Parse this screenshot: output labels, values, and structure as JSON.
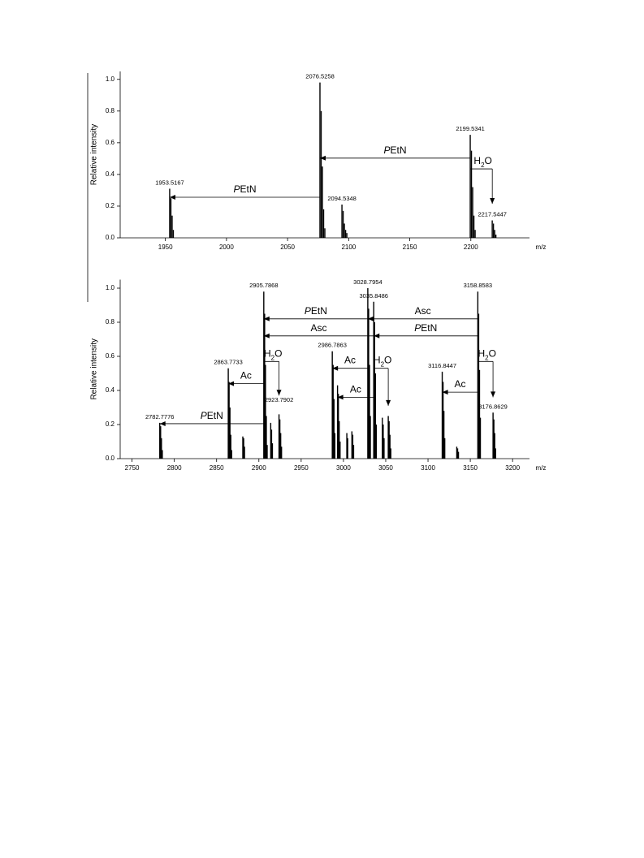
{
  "chart_data": [
    {
      "type": "stem",
      "y_label": "Relative intensity",
      "x_label": "m/z",
      "xlim": [
        1913,
        2248
      ],
      "ylim": [
        0,
        1.05
      ],
      "xticks": [
        1950,
        2000,
        2050,
        2100,
        2150,
        2200
      ],
      "yticks": [
        {
          "value": 0,
          "label": "0.0"
        },
        {
          "value": 0.2,
          "label": "0.2"
        },
        {
          "value": 0.4,
          "label": "0.4"
        },
        {
          "value": 0.6,
          "label": "0.6"
        },
        {
          "value": 0.8,
          "label": "0.8"
        },
        {
          "value": 1,
          "label": "1.0"
        }
      ],
      "color": "#000000",
      "x": [
        1953.5,
        1954.5,
        1955.5,
        1956.5,
        2076.5,
        2077.5,
        2078.5,
        2079.5,
        2080.5,
        2094.5,
        2095.5,
        2096.5,
        2097.5,
        2098.5,
        2199.5,
        2200.5,
        2201.5,
        2202.5,
        2203.5,
        2217.5,
        2218.5,
        2219.5,
        2220.5
      ],
      "values": [
        0.31,
        0.25,
        0.14,
        0.05,
        0.98,
        0.8,
        0.45,
        0.18,
        0.06,
        0.21,
        0.17,
        0.09,
        0.05,
        0.03,
        0.65,
        0.55,
        0.32,
        0.14,
        0.05,
        0.11,
        0.09,
        0.05,
        0.02
      ],
      "peak_labels": [
        {
          "x": 1953.5167,
          "y": 0.31
        },
        {
          "x": 2076.5258,
          "y": 0.98
        },
        {
          "x": 2094.5348,
          "y": 0.21
        },
        {
          "x": 2199.5341,
          "y": 0.65
        },
        {
          "x": 2217.5447,
          "y": 0.11
        }
      ],
      "arrows": [
        {
          "label": "PEtN",
          "from": 2199.5341,
          "to": 2076.5258,
          "y": 0.503
        },
        {
          "label": "PEtN",
          "from": 2076.5258,
          "to": 1953.5167,
          "y": 0.256
        },
        {
          "label": "H2O",
          "from": 2199.5341,
          "to": 2217.5447,
          "y": 0.435,
          "y_end": 0.215
        }
      ]
    },
    {
      "type": "stem",
      "y_label": "Relative intensity",
      "x_label": "m/z",
      "xlim": [
        2736,
        3220
      ],
      "ylim": [
        0,
        1.05
      ],
      "xticks": [
        2750,
        2800,
        2850,
        2900,
        2950,
        3000,
        3050,
        3100,
        3150,
        3200
      ],
      "yticks": [
        {
          "value": 0,
          "label": "0.0"
        },
        {
          "value": 0.2,
          "label": "0.2"
        },
        {
          "value": 0.4,
          "label": "0.4"
        },
        {
          "value": 0.6,
          "label": "0.6"
        },
        {
          "value": 0.8,
          "label": "0.8"
        },
        {
          "value": 1,
          "label": "1.0"
        }
      ],
      "color": "#000000",
      "x": [
        2782.8,
        2783.8,
        2784.8,
        2785.8,
        2863.8,
        2864.8,
        2865.8,
        2866.8,
        2867.8,
        2881,
        2882,
        2883,
        2905.8,
        2906.8,
        2907.8,
        2908.8,
        2909.8,
        2914,
        2915,
        2916,
        2923.8,
        2924.8,
        2925.8,
        2926.8,
        2986.8,
        2987.8,
        2988.8,
        2989.8,
        2993,
        2994,
        2995,
        2996,
        3004,
        3005,
        3010,
        3011,
        3012,
        3028.8,
        3029.8,
        3030.8,
        3031.8,
        3035.8,
        3036.8,
        3037.8,
        3038.8,
        3046,
        3047,
        3048,
        3053,
        3054,
        3055,
        3056,
        3116.8,
        3117.8,
        3118.8,
        3119.8,
        3134,
        3135,
        3136,
        3158.9,
        3159.9,
        3160.9,
        3161.9,
        3176.9,
        3177.9,
        3178.9,
        3179.9
      ],
      "values": [
        0.21,
        0.19,
        0.12,
        0.05,
        0.53,
        0.45,
        0.3,
        0.14,
        0.05,
        0.13,
        0.12,
        0.07,
        0.98,
        0.85,
        0.55,
        0.25,
        0.08,
        0.21,
        0.17,
        0.09,
        0.26,
        0.23,
        0.15,
        0.07,
        0.63,
        0.55,
        0.35,
        0.15,
        0.43,
        0.38,
        0.22,
        0.1,
        0.15,
        0.12,
        0.16,
        0.14,
        0.08,
        1.0,
        0.88,
        0.55,
        0.25,
        0.92,
        0.8,
        0.5,
        0.2,
        0.24,
        0.2,
        0.12,
        0.25,
        0.22,
        0.14,
        0.06,
        0.51,
        0.45,
        0.28,
        0.12,
        0.07,
        0.06,
        0.04,
        0.98,
        0.85,
        0.52,
        0.24,
        0.27,
        0.23,
        0.15,
        0.06
      ],
      "peak_labels": [
        {
          "x": 2782.7776,
          "y": 0.21
        },
        {
          "x": 2863.7733,
          "y": 0.53
        },
        {
          "x": 2905.7868,
          "y": 0.98
        },
        {
          "x": 2923.7902,
          "y": 0.31
        },
        {
          "x": 2986.7863,
          "y": 0.63
        },
        {
          "x": 3028.7954,
          "y": 1.0
        },
        {
          "x": 3035.8486,
          "y": 0.92
        },
        {
          "x": 3116.8447,
          "y": 0.51
        },
        {
          "x": 3158.8583,
          "y": 0.98
        },
        {
          "x": 3176.8629,
          "y": 0.27
        }
      ],
      "arrows": [
        {
          "label": "PEtN",
          "from": 3028.7954,
          "to": 2905.7868,
          "y": 0.82
        },
        {
          "label": "Asc",
          "from": 3158.8583,
          "to": 3028.7954,
          "y": 0.82
        },
        {
          "label": "Asc",
          "from": 3035.8486,
          "to": 2905.7868,
          "y": 0.72
        },
        {
          "label": "PEtN",
          "from": 3158.8583,
          "to": 3035.8486,
          "y": 0.72
        },
        {
          "label": "H2O",
          "from": 2905.7868,
          "to": 2923.7902,
          "y": 0.57,
          "y_end": 0.37
        },
        {
          "label": "Ac",
          "from": 2905.7868,
          "to": 2863.7733,
          "y": 0.44
        },
        {
          "label": "PEtN",
          "from": 2905.7868,
          "to": 2782.7776,
          "y": 0.205
        },
        {
          "label": "Ac",
          "from": 3028.7954,
          "to": 2986.7863,
          "y": 0.53
        },
        {
          "label": "Ac",
          "from": 3035.8486,
          "to": 2993,
          "y": 0.36
        },
        {
          "label": "H2O",
          "from": 3035.8486,
          "to": 3053,
          "y": 0.53,
          "y_end": 0.31
        },
        {
          "label": "Ac",
          "from": 3158.8583,
          "to": 3116.8447,
          "y": 0.39
        },
        {
          "label": "H2O",
          "from": 3158.8583,
          "to": 3176.8629,
          "y": 0.57,
          "y_end": 0.36
        }
      ]
    }
  ]
}
